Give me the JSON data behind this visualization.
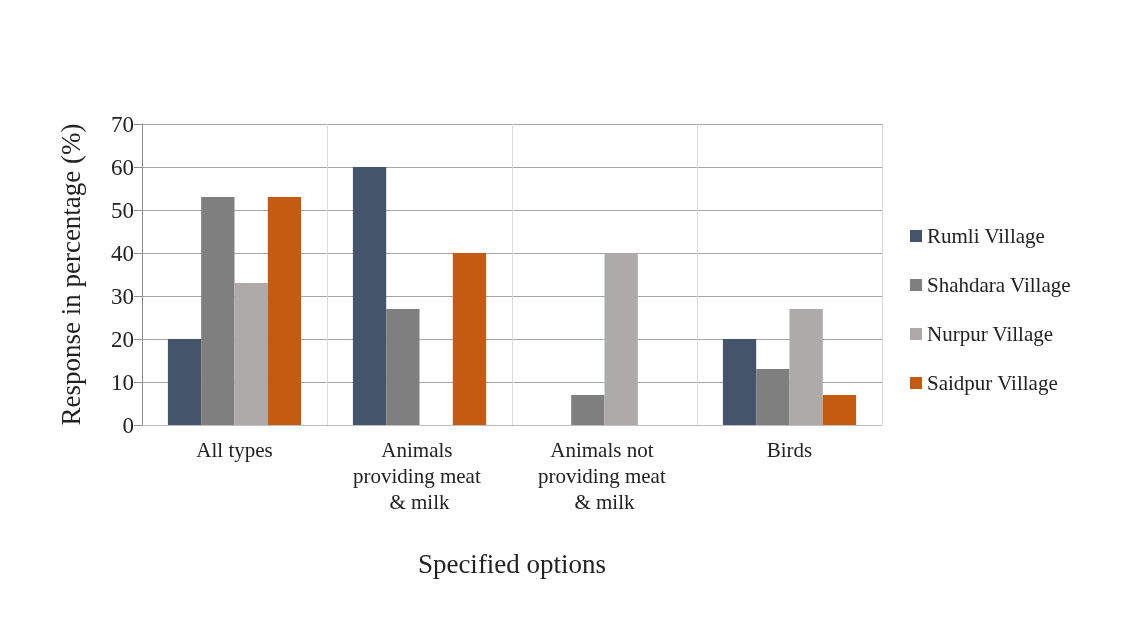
{
  "chart_data": {
    "type": "bar",
    "xlabel": "Specified options",
    "ylabel": "Response in percentage (%)",
    "categories": [
      "All types",
      "Animals providing meat & milk",
      "Animals not providing meat & milk",
      "Birds"
    ],
    "series": [
      {
        "name": "Rumli Village",
        "color": "#44546a",
        "values": [
          20,
          60,
          0,
          20
        ]
      },
      {
        "name": "Shahdara Village",
        "color": "#7f7f7f",
        "values": [
          53,
          27,
          7,
          13
        ]
      },
      {
        "name": "Nurpur Village",
        "color": "#aeaaaa",
        "values": [
          33,
          0,
          40,
          27
        ]
      },
      {
        "name": "Saidpur Village",
        "color": "#c55a11",
        "values": [
          53,
          40,
          0,
          7
        ]
      }
    ],
    "ylim": [
      0,
      70
    ],
    "yticks": [
      0,
      10,
      20,
      30,
      40,
      50,
      60,
      70
    ],
    "grid": true,
    "legend": "right"
  }
}
